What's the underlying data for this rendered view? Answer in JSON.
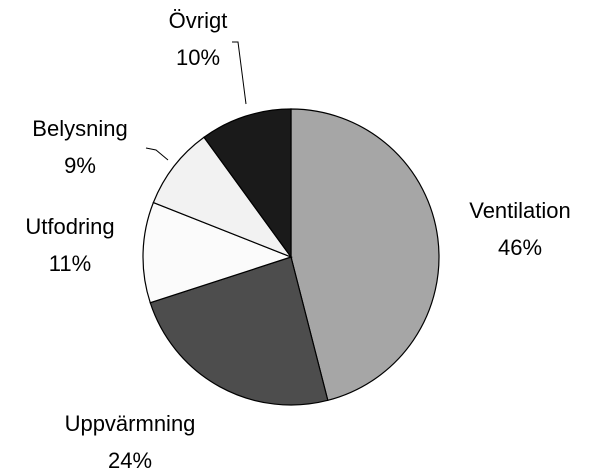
{
  "chart_data": {
    "type": "pie",
    "categories": [
      "Ventilation",
      "Uppvärmning",
      "Utfodring",
      "Belysning",
      "Övrigt"
    ],
    "values": [
      46,
      24,
      11,
      9,
      10
    ],
    "value_labels": [
      "46%",
      "24%",
      "11%",
      "9%",
      "10%"
    ],
    "colors": [
      "#a6a6a6",
      "#4d4d4d",
      "#fbfbfb",
      "#f2f2f2",
      "#1a1a1a"
    ]
  }
}
